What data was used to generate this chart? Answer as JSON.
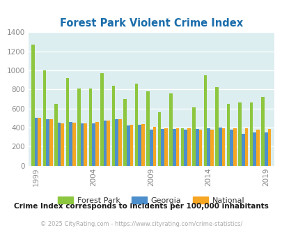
{
  "title": "Forest Park Violent Crime Index",
  "subtitle": "Crime Index corresponds to incidents per 100,000 inhabitants",
  "footer": "© 2025 CityRating.com - https://www.cityrating.com/crime-statistics/",
  "years": [
    1999,
    2000,
    2001,
    2002,
    2003,
    2004,
    2005,
    2006,
    2007,
    2008,
    2009,
    2010,
    2011,
    2012,
    2013,
    2014,
    2015,
    2016,
    2017,
    2018,
    2019
  ],
  "forest_park": [
    1270,
    1000,
    650,
    920,
    810,
    810,
    970,
    840,
    700,
    860,
    780,
    560,
    760,
    390,
    610,
    950,
    820,
    650,
    660,
    660,
    720
  ],
  "georgia": [
    505,
    490,
    450,
    455,
    445,
    445,
    470,
    490,
    420,
    430,
    375,
    385,
    385,
    375,
    385,
    390,
    400,
    375,
    330,
    350,
    350
  ],
  "national": [
    505,
    490,
    445,
    450,
    445,
    455,
    470,
    490,
    425,
    435,
    405,
    390,
    390,
    395,
    380,
    375,
    395,
    395,
    395,
    375,
    385
  ],
  "ylim": [
    0,
    1400
  ],
  "yticks": [
    0,
    200,
    400,
    600,
    800,
    1000,
    1200,
    1400
  ],
  "xtick_years": [
    1999,
    2004,
    2009,
    2014,
    2019
  ],
  "color_fp": "#8dc63f",
  "color_ga": "#4d8fcc",
  "color_na": "#f5a623",
  "bg_color": "#ddeef0",
  "title_color": "#1a6dab",
  "subtitle_color": "#1a1a1a",
  "footer_color": "#aaaaaa",
  "bar_width": 0.28
}
